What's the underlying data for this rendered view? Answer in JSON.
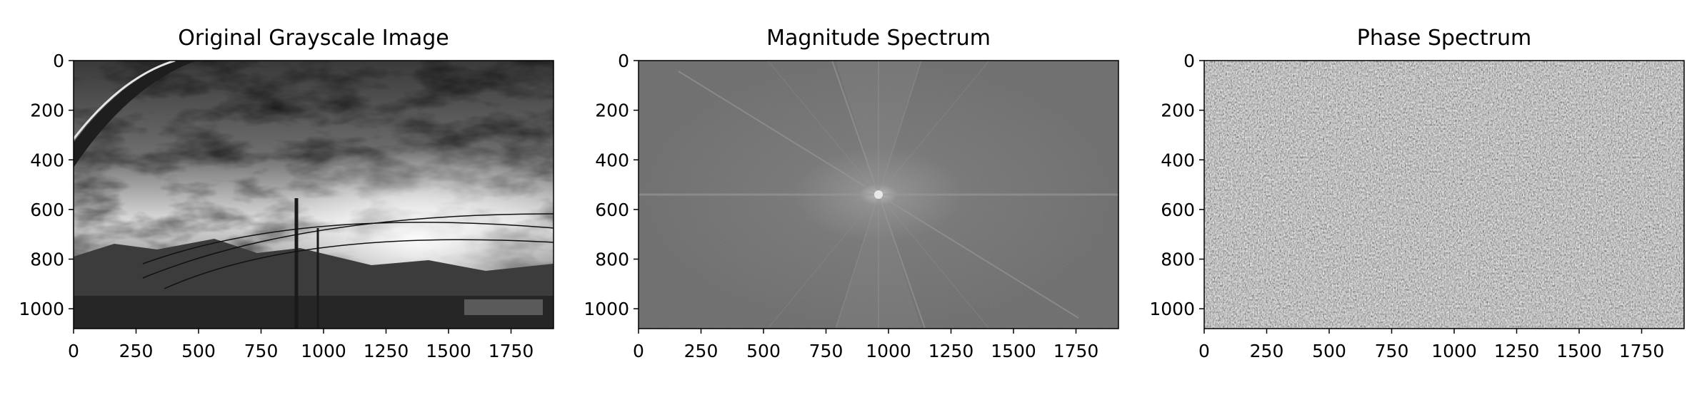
{
  "chart_data": [
    {
      "type": "image",
      "title": "Original Grayscale Image",
      "xlim": [
        0,
        1920
      ],
      "ylim": [
        1080,
        0
      ],
      "xticks": [
        0,
        250,
        500,
        750,
        1000,
        1250,
        1500,
        1750
      ],
      "yticks": [
        0,
        200,
        400,
        600,
        800,
        1000
      ],
      "colormap": "gray",
      "content": "photo"
    },
    {
      "type": "image",
      "title": "Magnitude Spectrum",
      "xlim": [
        0,
        1920
      ],
      "ylim": [
        1080,
        0
      ],
      "xticks": [
        0,
        250,
        500,
        750,
        1000,
        1250,
        1500,
        1750
      ],
      "yticks": [
        0,
        200,
        400,
        600,
        800,
        1000
      ],
      "colormap": "gray",
      "content": "magnitude",
      "center": [
        960,
        540
      ]
    },
    {
      "type": "image",
      "title": "Phase Spectrum",
      "xlim": [
        0,
        1920
      ],
      "ylim": [
        1080,
        0
      ],
      "xticks": [
        0,
        250,
        500,
        750,
        1000,
        1250,
        1500,
        1750
      ],
      "yticks": [
        0,
        200,
        400,
        600,
        800,
        1000
      ],
      "colormap": "gray",
      "content": "phase"
    }
  ]
}
